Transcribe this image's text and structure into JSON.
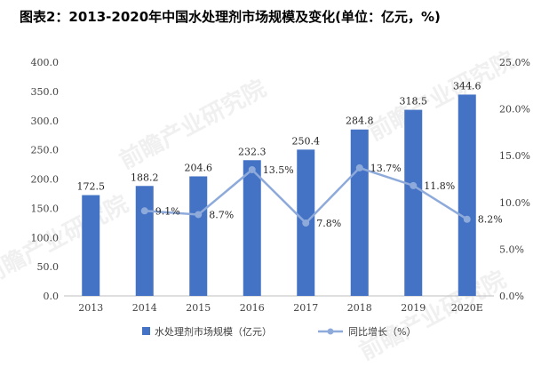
{
  "title": "图表2：2013-2020年中国水处理剂市场规模及变化(单位：亿元，%)",
  "watermark": "前瞻产业研究院",
  "chart_data": {
    "type": "bar",
    "categories": [
      "2013",
      "2014",
      "2015",
      "2016",
      "2017",
      "2018",
      "2019",
      "2020E"
    ],
    "series": [
      {
        "name": "水处理剂市场规模（亿元）",
        "type": "bar",
        "axis": "left",
        "color": "#4472C4",
        "values": [
          172.5,
          188.2,
          204.6,
          232.3,
          250.4,
          284.8,
          318.5,
          344.6
        ],
        "labels": [
          "172.5",
          "188.2",
          "204.6",
          "232.3",
          "250.4",
          "284.8",
          "318.5",
          "344.6"
        ]
      },
      {
        "name": "同比增长（%）",
        "type": "line",
        "axis": "right",
        "color": "#8EAADB",
        "values": [
          null,
          9.1,
          8.7,
          13.5,
          7.8,
          13.7,
          11.8,
          8.2
        ],
        "labels": [
          "",
          "9.1%",
          "8.7%",
          "13.5%",
          "7.8%",
          "13.7%",
          "11.8%",
          "8.2%"
        ]
      }
    ],
    "y_left": {
      "min": 0,
      "max": 400,
      "ticks": [
        "0.0",
        "50.0",
        "100.0",
        "150.0",
        "200.0",
        "250.0",
        "300.0",
        "350.0",
        "400.0"
      ]
    },
    "y_right": {
      "min": 0,
      "max": 25,
      "ticks": [
        "0.0%",
        "5.0%",
        "10.0%",
        "15.0%",
        "20.0%",
        "25.0%"
      ]
    },
    "grid": false,
    "legend_position": "bottom"
  }
}
